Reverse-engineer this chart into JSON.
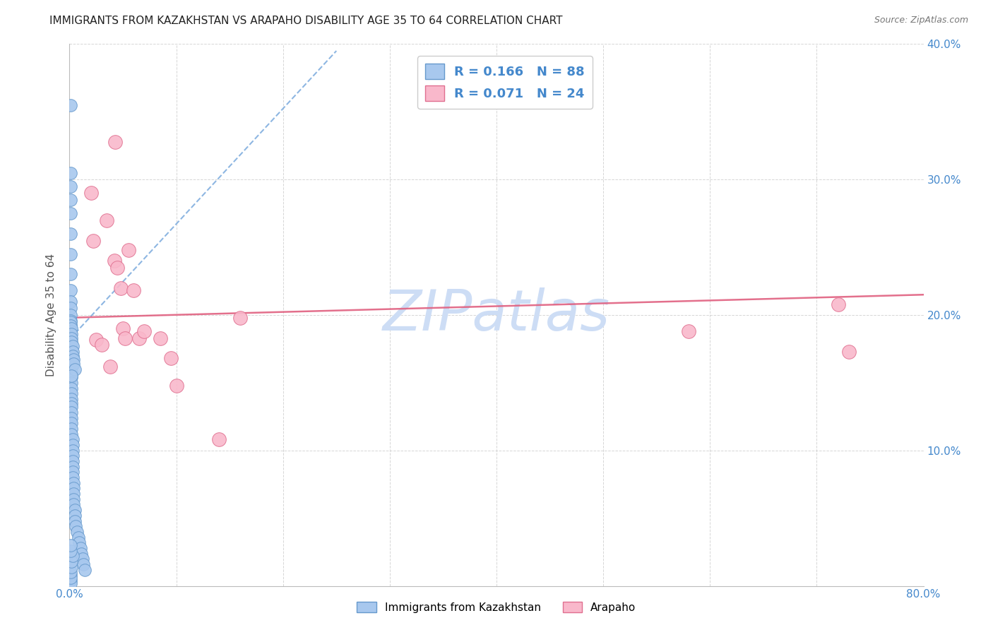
{
  "title": "IMMIGRANTS FROM KAZAKHSTAN VS ARAPAHO DISABILITY AGE 35 TO 64 CORRELATION CHART",
  "source": "Source: ZipAtlas.com",
  "ylabel": "Disability Age 35 to 64",
  "xlim": [
    0,
    0.8
  ],
  "ylim": [
    0,
    0.4
  ],
  "series1_label": "Immigrants from Kazakhstan",
  "series1_R": "0.166",
  "series1_N": "88",
  "series1_color": "#a8c8ee",
  "series1_edge": "#6699cc",
  "series2_label": "Arapaho",
  "series2_R": "0.071",
  "series2_N": "24",
  "series2_color": "#f9b8cb",
  "series2_edge": "#e07090",
  "trend1_color": "#7aaadd",
  "trend2_color": "#e06080",
  "watermark": "ZIPatlas",
  "watermark_color": "#cdddf5",
  "axis_label_color": "#4488cc",
  "title_color": "#222222",
  "background_color": "#ffffff",
  "series1_x": [
    0.001,
    0.001,
    0.001,
    0.001,
    0.001,
    0.001,
    0.001,
    0.001,
    0.001,
    0.001,
    0.001,
    0.001,
    0.001,
    0.001,
    0.001,
    0.001,
    0.001,
    0.001,
    0.001,
    0.001,
    0.002,
    0.002,
    0.002,
    0.002,
    0.002,
    0.002,
    0.002,
    0.002,
    0.002,
    0.002,
    0.002,
    0.002,
    0.002,
    0.002,
    0.002,
    0.003,
    0.003,
    0.003,
    0.003,
    0.003,
    0.003,
    0.003,
    0.003,
    0.004,
    0.004,
    0.004,
    0.004,
    0.004,
    0.005,
    0.005,
    0.005,
    0.006,
    0.007,
    0.008,
    0.009,
    0.01,
    0.011,
    0.012,
    0.013,
    0.014,
    0.001,
    0.001,
    0.001,
    0.001,
    0.001,
    0.001,
    0.001,
    0.002,
    0.002,
    0.002,
    0.002,
    0.003,
    0.003,
    0.003,
    0.004,
    0.004,
    0.005,
    0.002,
    0.001,
    0.001,
    0.001,
    0.001,
    0.001,
    0.002,
    0.002,
    0.003,
    0.001,
    0.001
  ],
  "series1_y": [
    0.355,
    0.305,
    0.295,
    0.285,
    0.275,
    0.26,
    0.245,
    0.23,
    0.218,
    0.21,
    0.205,
    0.2,
    0.196,
    0.192,
    0.188,
    0.184,
    0.18,
    0.176,
    0.172,
    0.168,
    0.165,
    0.162,
    0.158,
    0.154,
    0.15,
    0.146,
    0.142,
    0.138,
    0.135,
    0.132,
    0.128,
    0.124,
    0.12,
    0.116,
    0.112,
    0.108,
    0.104,
    0.1,
    0.096,
    0.092,
    0.088,
    0.084,
    0.08,
    0.076,
    0.072,
    0.068,
    0.064,
    0.06,
    0.056,
    0.052,
    0.048,
    0.044,
    0.04,
    0.036,
    0.032,
    0.028,
    0.024,
    0.02,
    0.016,
    0.012,
    0.195,
    0.192,
    0.188,
    0.185,
    0.182,
    0.178,
    0.175,
    0.19,
    0.186,
    0.183,
    0.18,
    0.177,
    0.173,
    0.17,
    0.167,
    0.164,
    0.16,
    0.155,
    0.008,
    0.004,
    0.002,
    0.006,
    0.01,
    0.014,
    0.018,
    0.022,
    0.026,
    0.03
  ],
  "series2_x": [
    0.02,
    0.022,
    0.035,
    0.042,
    0.045,
    0.048,
    0.05,
    0.055,
    0.06,
    0.065,
    0.07,
    0.085,
    0.095,
    0.1,
    0.14,
    0.16,
    0.58,
    0.72,
    0.73,
    0.025,
    0.03,
    0.038,
    0.043,
    0.052
  ],
  "series2_y": [
    0.29,
    0.255,
    0.27,
    0.24,
    0.235,
    0.22,
    0.19,
    0.248,
    0.218,
    0.183,
    0.188,
    0.183,
    0.168,
    0.148,
    0.108,
    0.198,
    0.188,
    0.208,
    0.173,
    0.182,
    0.178,
    0.162,
    0.328,
    0.183
  ],
  "trend1_x0": 0.0,
  "trend1_y0": 0.182,
  "trend1_x1": 0.25,
  "trend1_y1": 0.395,
  "trend2_x0": 0.0,
  "trend2_y0": 0.198,
  "trend2_x1": 0.8,
  "trend2_y1": 0.215
}
